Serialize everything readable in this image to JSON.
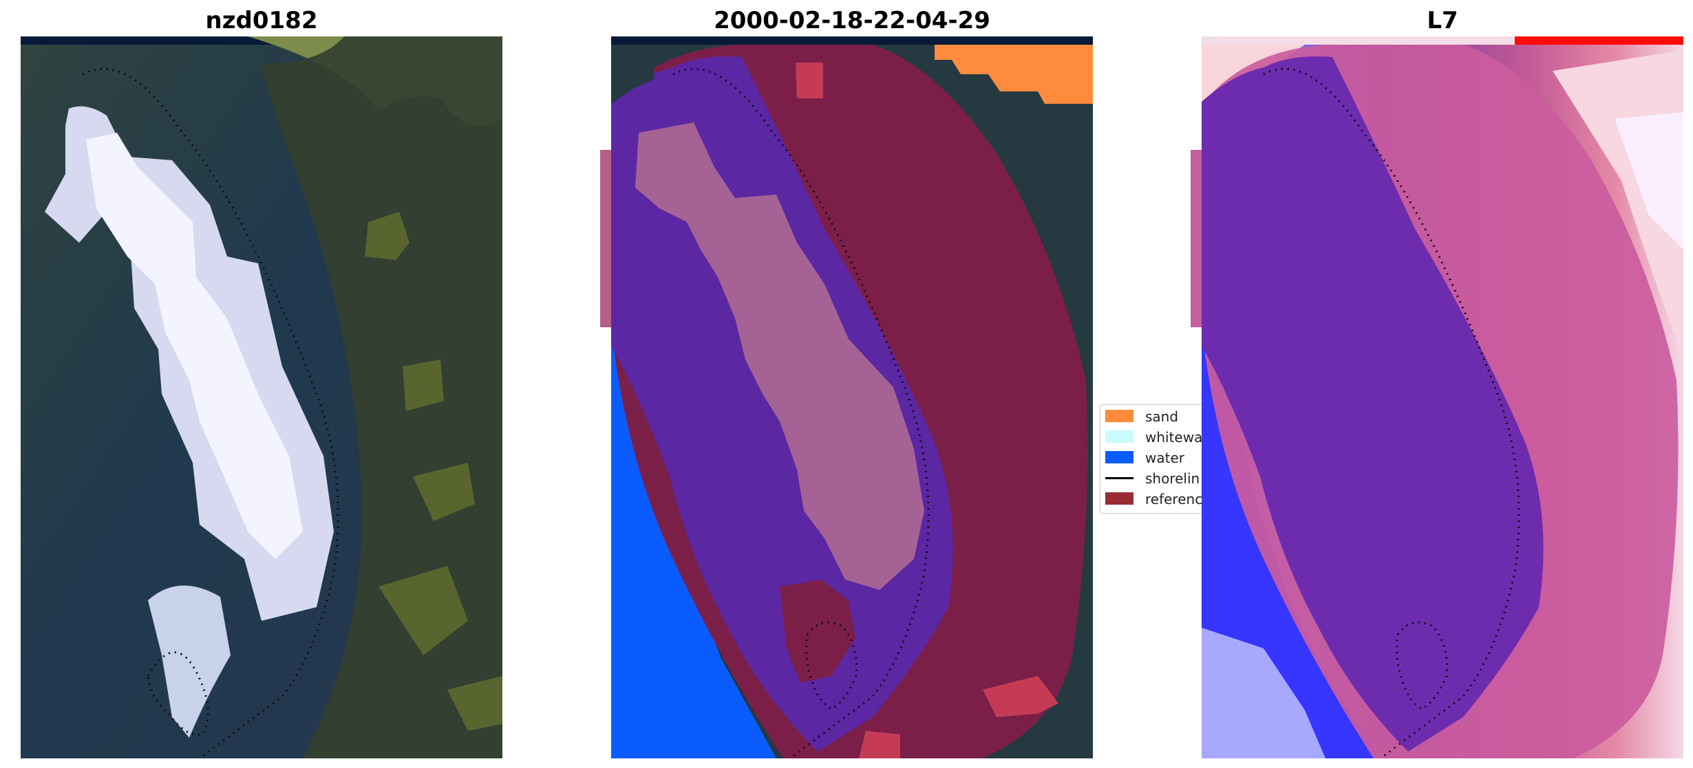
{
  "titles": {
    "left": "nzd0182",
    "middle": "2000-02-18-22-04-29",
    "right": "L7"
  },
  "legend": {
    "items": [
      {
        "label": "sand",
        "color": "#ff8c3c",
        "kind": "patch"
      },
      {
        "label": "whitewa",
        "color": "#c8fbfb",
        "kind": "patch"
      },
      {
        "label": "water",
        "color": "#0b5cff",
        "kind": "patch"
      },
      {
        "label": "shorelin",
        "color": "#000000",
        "kind": "line"
      },
      {
        "label": "referenc",
        "color": "#9a2c36",
        "kind": "patch"
      }
    ]
  },
  "colors": {
    "rgb_water": "#24435d",
    "rgb_land": "#3d4b33",
    "rgb_sand": "#e8ecff",
    "class_water": "#0b5cff",
    "class_sand": "#ff8c3c",
    "class_purple": "#5b27a3",
    "class_pink": "#a56294",
    "reference_buffer": "#7b1f49",
    "index_blue": "#1b21ff",
    "index_red": "#e1376b",
    "index_purple": "#6c2ca7"
  }
}
